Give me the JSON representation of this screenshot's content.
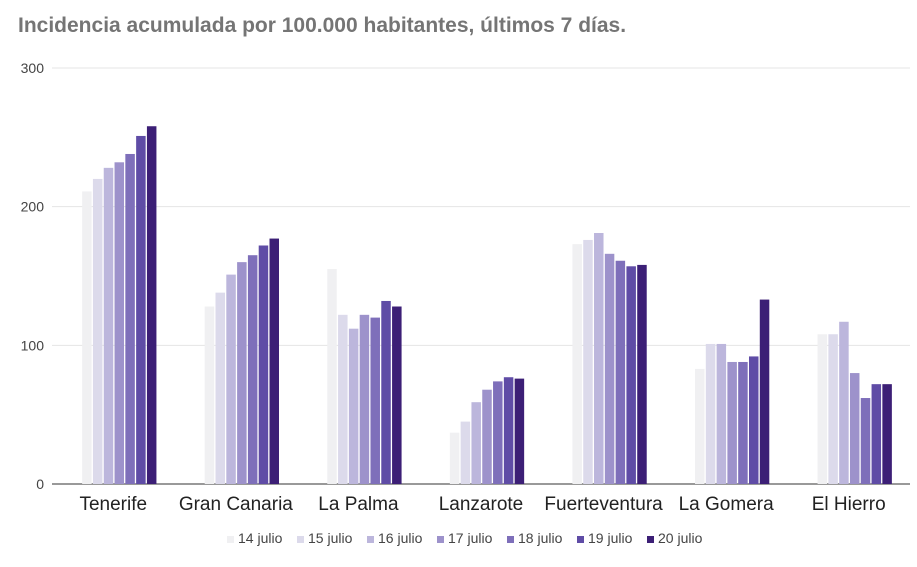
{
  "title": "Incidencia acumulada por 100.000 habitantes, últimos 7 días.",
  "chart_data": {
    "type": "bar",
    "title": "Incidencia acumulada por 100.000 habitantes, últimos 7 días.",
    "xlabel": "",
    "ylabel": "",
    "ylim": [
      0,
      300
    ],
    "yticks": [
      "0",
      "100",
      "200",
      "300"
    ],
    "grid": true,
    "legend_position": "bottom",
    "categories": [
      "Tenerife",
      "Gran Canaria",
      "La Palma",
      "Lanzarote",
      "Fuerteventura",
      "La Gomera",
      "El Hierro"
    ],
    "series": [
      {
        "name": "14 julio",
        "color": "#f0f0f2",
        "values": [
          211,
          128,
          155,
          37,
          173,
          83,
          108
        ]
      },
      {
        "name": "15 julio",
        "color": "#dcdaeb",
        "values": [
          220,
          138,
          122,
          45,
          176,
          101,
          108
        ]
      },
      {
        "name": "16 julio",
        "color": "#bcb6dc",
        "values": [
          228,
          151,
          112,
          59,
          181,
          101,
          117
        ]
      },
      {
        "name": "17 julio",
        "color": "#9d92cb",
        "values": [
          232,
          160,
          122,
          68,
          166,
          88,
          80
        ]
      },
      {
        "name": "18 julio",
        "color": "#7e6fba",
        "values": [
          238,
          165,
          120,
          74,
          161,
          88,
          62
        ]
      },
      {
        "name": "19 julio",
        "color": "#5f4ca6",
        "values": [
          251,
          172,
          132,
          77,
          157,
          92,
          72
        ]
      },
      {
        "name": "20 julio",
        "color": "#3c1f76",
        "values": [
          258,
          177,
          128,
          76,
          158,
          133,
          72
        ]
      }
    ]
  }
}
